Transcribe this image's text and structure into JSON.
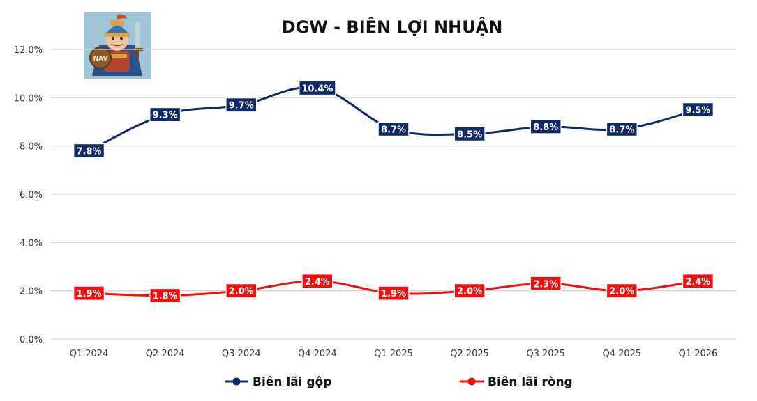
{
  "chart_data": {
    "type": "line",
    "title": "DGW - BIÊN LỢI NHUẬN",
    "xlabel": "",
    "ylabel": "",
    "categories": [
      "Q1 2024",
      "Q2 2024",
      "Q3 2024",
      "Q4 2024",
      "Q1 2025",
      "Q2 2025",
      "Q3 2025",
      "Q4 2025",
      "Q1 2026"
    ],
    "ylim": [
      0,
      12
    ],
    "yticks": [
      "0.0%",
      "2.0%",
      "4.0%",
      "6.0%",
      "8.0%",
      "10.0%",
      "12.0%"
    ],
    "grid": true,
    "legend_position": "bottom",
    "series": [
      {
        "name": "Biên lãi gộp",
        "color": "#0f2a66",
        "values": [
          7.8,
          9.3,
          9.7,
          10.4,
          8.7,
          8.5,
          8.8,
          8.7,
          9.5
        ],
        "labels": [
          "7.8%",
          "9.3%",
          "9.7%",
          "10.4%",
          "8.7%",
          "8.5%",
          "8.8%",
          "8.7%",
          "9.5%"
        ]
      },
      {
        "name": "Biên lãi ròng",
        "color": "#ee1111",
        "values": [
          1.9,
          1.8,
          2.0,
          2.4,
          1.9,
          2.0,
          2.3,
          2.0,
          2.4
        ],
        "labels": [
          "1.9%",
          "1.8%",
          "2.0%",
          "2.4%",
          "1.9%",
          "2.0%",
          "2.3%",
          "2.0%",
          "2.4%"
        ]
      }
    ],
    "logo": {
      "icon": "warrior-mascot-icon",
      "badge_text": "NAV"
    }
  }
}
